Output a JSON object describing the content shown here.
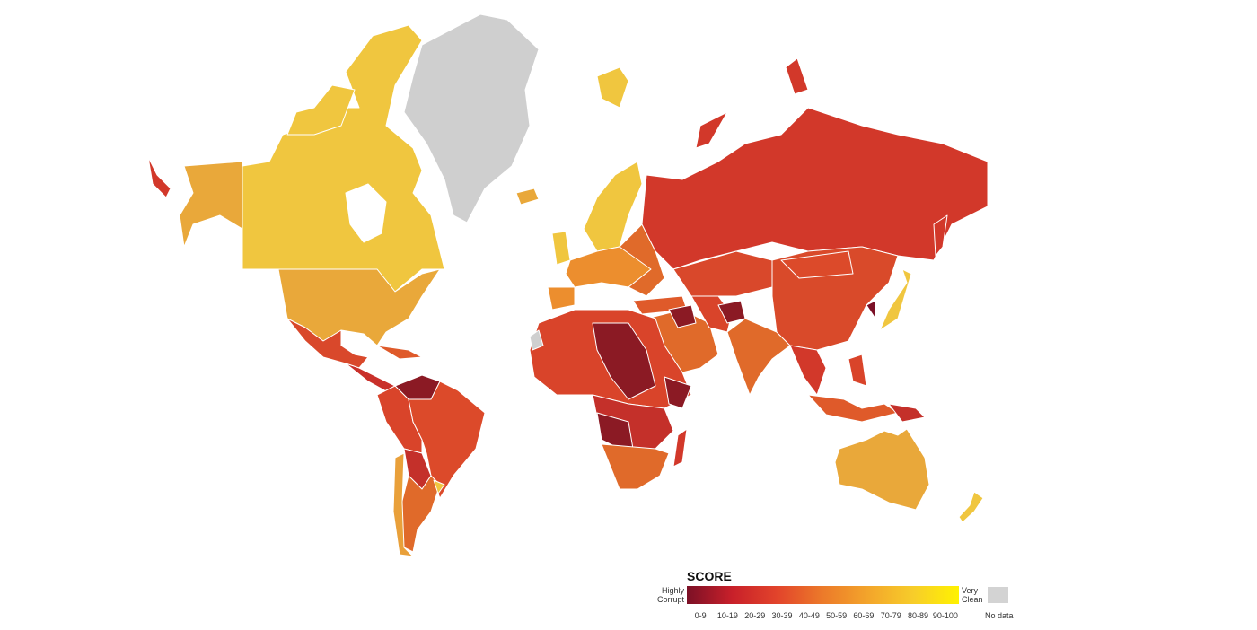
{
  "legend": {
    "title": "SCORE",
    "low_label": "Highly Corrupt",
    "high_label": "Very Clean",
    "bins": [
      "0-9",
      "10-19",
      "20-29",
      "30-39",
      "40-49",
      "50-59",
      "60-69",
      "70-79",
      "80-89",
      "90-100"
    ],
    "no_data": "No data"
  }
}
